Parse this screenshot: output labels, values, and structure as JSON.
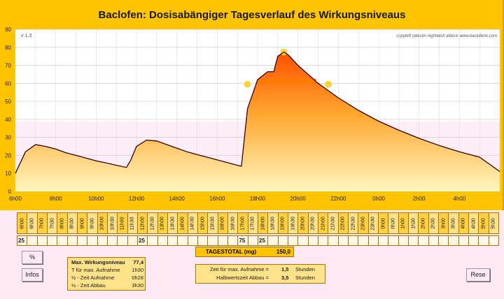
{
  "chart_data": {
    "type": "area",
    "title": "Baclofen: Dosisabängiger Tagesverlauf des Wirkungsniveaus",
    "version": "v 1.3",
    "credit": "copyleft  célestin  nightwish  albéric  www.baclofene.com",
    "ylim": [
      0,
      90
    ],
    "yticks": [
      0,
      10,
      20,
      30,
      40,
      50,
      60,
      70,
      80,
      90
    ],
    "xlim": [
      6,
      30
    ],
    "xticks": [
      {
        "t": 6,
        "label": "6h00"
      },
      {
        "t": 8,
        "label": "8h00"
      },
      {
        "t": 10,
        "label": "10h00"
      },
      {
        "t": 12,
        "label": "12h00"
      },
      {
        "t": 14,
        "label": "14h00"
      },
      {
        "t": 16,
        "label": "16h00"
      },
      {
        "t": 18,
        "label": "18h00"
      },
      {
        "t": 20,
        "label": "20h00"
      },
      {
        "t": 22,
        "label": "22h00"
      },
      {
        "t": 24,
        "label": "0h00"
      },
      {
        "t": 26,
        "label": "2h00"
      },
      {
        "t": 28,
        "label": "4h00"
      }
    ],
    "grid": true,
    "x": [
      6,
      6.5,
      7,
      7.5,
      8,
      8.5,
      9,
      9.5,
      10,
      10.5,
      11,
      11.5,
      11.7,
      12,
      12.5,
      13,
      13.5,
      14,
      14.5,
      15,
      15.5,
      16,
      16.5,
      17,
      17.2,
      17.5,
      18,
      18.5,
      18.8,
      19,
      19.3,
      19.5,
      20,
      20.5,
      21,
      21.5,
      22,
      23,
      24,
      25,
      26,
      27,
      28,
      29,
      30
    ],
    "y": [
      10,
      22,
      26,
      25,
      23.5,
      21.5,
      20,
      18.5,
      17,
      15.8,
      14.5,
      13.3,
      17,
      25,
      28.5,
      28,
      26,
      24,
      22,
      20.5,
      19,
      17.5,
      16,
      14.5,
      14,
      46,
      62,
      66.5,
      66.5,
      75,
      77.4,
      76,
      70,
      65,
      60,
      56,
      52,
      45,
      39,
      34,
      29.5,
      25.5,
      22,
      19,
      11
    ],
    "peak_markers": [
      {
        "x": 19.3,
        "y": 77.4
      },
      {
        "x": 17.5,
        "y": 59.5
      },
      {
        "x": 21.5,
        "y": 59.5
      }
    ],
    "band": [
      {
        "x": 18.0,
        "y": 61.5
      },
      {
        "x": 20.9,
        "y": 61.5
      }
    ]
  },
  "time_slots": [
    "6h00",
    "6h30",
    "7h00",
    "7h30",
    "8h00",
    "8h30",
    "9h00",
    "9h30",
    "10h00",
    "10h30",
    "11h00",
    "11h30",
    "12h00",
    "12h30",
    "13h00",
    "13h30",
    "14h00",
    "14h30",
    "15h00",
    "15h30",
    "16h00",
    "16h30",
    "17h00",
    "17h30",
    "18h00",
    "18h30",
    "19h00",
    "19h30",
    "20h00",
    "20h30",
    "21h00",
    "21h30",
    "22h00",
    "22h30",
    "23h00",
    "23h30",
    "0h00",
    "0h30",
    "1h00",
    "1h30",
    "2h00",
    "2h30",
    "3h00",
    "3h30",
    "4h00",
    "4h30",
    "5h00",
    "5h30"
  ],
  "doses": [
    "25",
    "",
    "",
    "",
    "",
    "",
    "",
    "",
    "",
    "",
    "",
    "",
    "25",
    "",
    "",
    "",
    "",
    "",
    "",
    "",
    "",
    "",
    "75",
    "",
    "25",
    "",
    "",
    "",
    "",
    "",
    "",
    "",
    "",
    "",
    "",
    "",
    "",
    "",
    "",
    "",
    "",
    "",
    "",
    "",
    "",
    "",
    "",
    ""
  ],
  "total": {
    "label": "TAGESTOTAL (mg)",
    "value": "150,0"
  },
  "buttons": {
    "percent": "%",
    "infos": "Infos",
    "reset": "Rese"
  },
  "info": [
    {
      "label": "Max. Wirkungsniveau",
      "value": "77,4"
    },
    {
      "label": "T für max. Aufnahme",
      "value": "1h30"
    },
    {
      "label": "½ - Zeit Aufnahme",
      "value": "0h26"
    },
    {
      "label": "½ - Zeit Abbau",
      "value": "3h30"
    }
  ],
  "settings": [
    {
      "label": "Zeit für max. Aufnahme =",
      "value": "1,5",
      "unit": "Stunden"
    },
    {
      "label": "Halbwertszeit Abbau =",
      "value": "3,5",
      "unit": "Stunden"
    }
  ],
  "colors": {
    "accent": "#ffc400",
    "fill_top": "#ff5a00",
    "fill_bottom": "#fff2b0",
    "band": "#ff7a00",
    "marker": "#ffd23a",
    "background": "#fde9f4"
  }
}
